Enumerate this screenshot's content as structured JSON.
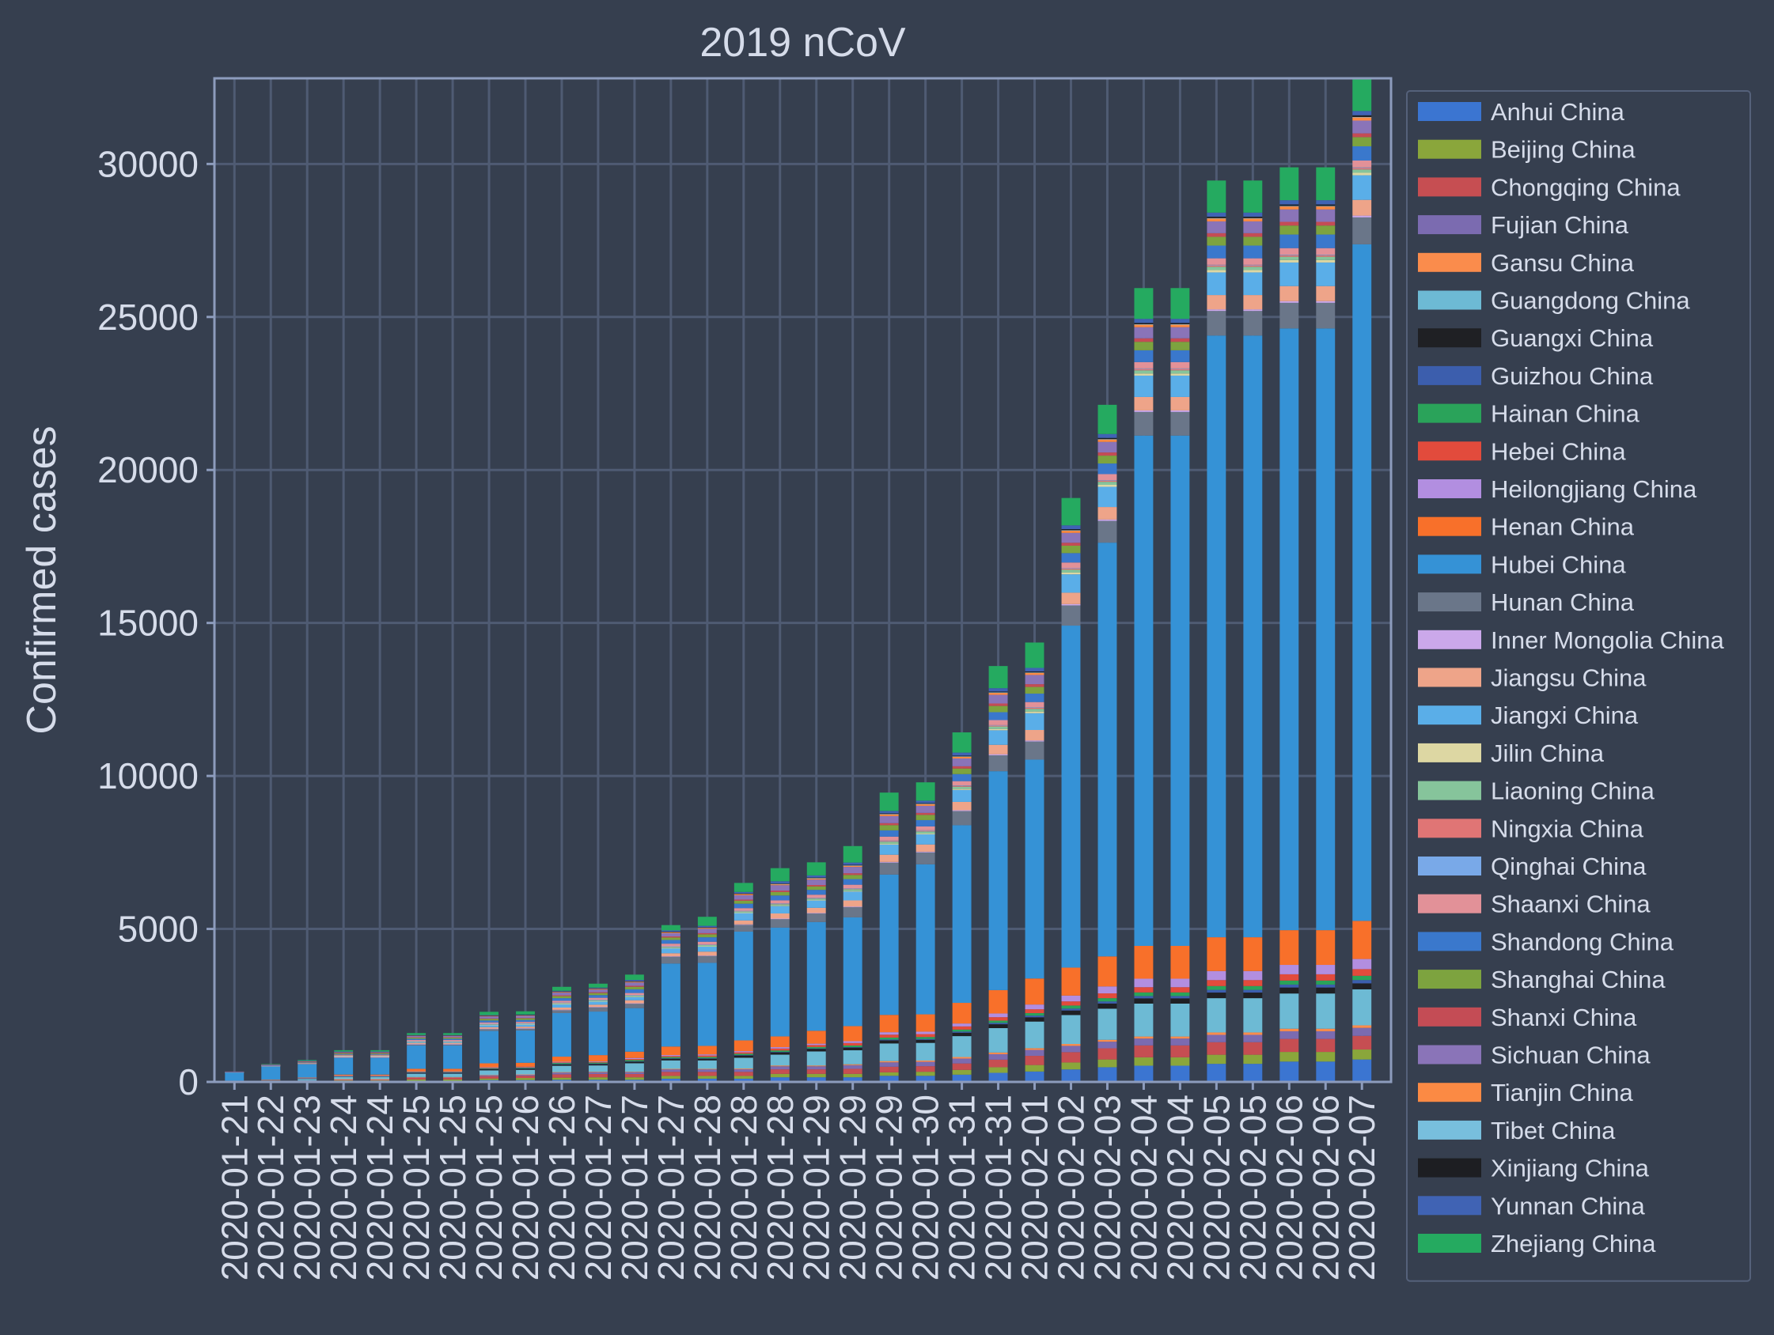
{
  "chart_data": {
    "type": "bar",
    "stacked": true,
    "title": "2019 nCoV",
    "xlabel": "",
    "ylabel": "Confirmed cases",
    "ylim": [
      0,
      32800
    ],
    "yticks": [
      0,
      5000,
      10000,
      15000,
      20000,
      25000,
      30000
    ],
    "grid": true,
    "legend_position": "right",
    "categories": [
      "2020-01-21",
      "2020-01-22",
      "2020-01-23",
      "2020-01-24",
      "2020-01-24",
      "2020-01-25",
      "2020-01-25",
      "2020-01-25",
      "2020-01-26",
      "2020-01-26",
      "2020-01-27",
      "2020-01-27",
      "2020-01-27",
      "2020-01-28",
      "2020-01-28",
      "2020-01-28",
      "2020-01-29",
      "2020-01-29",
      "2020-01-29",
      "2020-01-30",
      "2020-01-31",
      "2020-01-31",
      "2020-02-01",
      "2020-02-02",
      "2020-02-03",
      "2020-02-04",
      "2020-02-04",
      "2020-02-05",
      "2020-02-05",
      "2020-02-06",
      "2020-02-06",
      "2020-02-07"
    ],
    "series": [
      {
        "name": "Anhui China",
        "color": "#3b75d1",
        "values": [
          0,
          1,
          9,
          15,
          15,
          39,
          39,
          60,
          60,
          70,
          70,
          70,
          106,
          106,
          106,
          152,
          152,
          152,
          200,
          200,
          237,
          297,
          340,
          408,
          480,
          530,
          530,
          591,
          591,
          665,
          665,
          733
        ]
      },
      {
        "name": "Beijing China",
        "color": "#8aa63b",
        "values": [
          10,
          14,
          22,
          36,
          36,
          41,
          41,
          51,
          68,
          68,
          80,
          80,
          91,
          91,
          91,
          111,
          111,
          111,
          114,
          132,
          156,
          183,
          212,
          228,
          253,
          274,
          274,
          297,
          297,
          315,
          315,
          326
        ]
      },
      {
        "name": "Chongqing China",
        "color": "#c64e52",
        "values": [
          0,
          6,
          9,
          27,
          27,
          57,
          57,
          75,
          75,
          110,
          110,
          110,
          132,
          132,
          132,
          147,
          147,
          165,
          182,
          182,
          211,
          247,
          300,
          337,
          366,
          389,
          389,
          411,
          411,
          426,
          426,
          446
        ]
      },
      {
        "name": "Fujian China",
        "color": "#7b6bb0",
        "values": [
          0,
          1,
          5,
          10,
          10,
          18,
          18,
          35,
          35,
          59,
          59,
          59,
          80,
          80,
          84,
          101,
          101,
          120,
          144,
          144,
          159,
          179,
          194,
          205,
          215,
          224,
          224,
          239,
          239,
          250,
          250,
          261
        ]
      },
      {
        "name": "Gansu China",
        "color": "#fa8c4c",
        "values": [
          0,
          0,
          0,
          2,
          2,
          4,
          4,
          7,
          7,
          14,
          14,
          14,
          19,
          19,
          24,
          26,
          26,
          29,
          40,
          40,
          51,
          55,
          57,
          62,
          62,
          67,
          67,
          79,
          79,
          83,
          83,
          83
        ]
      },
      {
        "name": "Guangdong China",
        "color": "#6dbad4",
        "values": [
          26,
          32,
          53,
          78,
          78,
          111,
          111,
          151,
          151,
          207,
          207,
          277,
          277,
          277,
          354,
          354,
          459,
          459,
          578,
          578,
          683,
          797,
          870,
          944,
          1018,
          1075,
          1075,
          1120,
          1120,
          1151,
          1151,
          1177
        ]
      },
      {
        "name": "Guangxi China",
        "color": "#1f2024",
        "values": [
          0,
          5,
          23,
          23,
          23,
          36,
          36,
          46,
          46,
          51,
          51,
          58,
          58,
          58,
          78,
          78,
          87,
          87,
          100,
          100,
          111,
          127,
          139,
          150,
          168,
          172,
          172,
          183,
          183,
          195,
          195,
          195
        ]
      },
      {
        "name": "Guizhou China",
        "color": "#3c5ead",
        "values": [
          0,
          1,
          3,
          3,
          3,
          4,
          4,
          5,
          5,
          7,
          7,
          9,
          9,
          9,
          9,
          12,
          12,
          15,
          29,
          29,
          38,
          46,
          56,
          64,
          69,
          77,
          77,
          89,
          89,
          96,
          96,
          109
        ]
      },
      {
        "name": "Hainan China",
        "color": "#2aa35a",
        "values": [
          0,
          4,
          5,
          8,
          8,
          19,
          19,
          22,
          22,
          33,
          33,
          40,
          40,
          43,
          43,
          46,
          46,
          52,
          62,
          62,
          64,
          72,
          80,
          99,
          106,
          117,
          117,
          124,
          124,
          131,
          131,
          138
        ]
      },
      {
        "name": "Hebei China",
        "color": "#e24b3c",
        "values": [
          0,
          1,
          1,
          2,
          2,
          8,
          8,
          13,
          13,
          18,
          18,
          33,
          33,
          48,
          48,
          65,
          65,
          82,
          96,
          96,
          104,
          113,
          126,
          135,
          157,
          171,
          171,
          195,
          195,
          206,
          206,
          218
        ]
      },
      {
        "name": "Heilongjiang China",
        "color": "#b28ee0",
        "values": [
          0,
          0,
          2,
          4,
          4,
          9,
          9,
          15,
          15,
          21,
          21,
          33,
          33,
          37,
          37,
          44,
          44,
          59,
          80,
          80,
          95,
          121,
          155,
          190,
          227,
          277,
          277,
          295,
          295,
          307,
          307,
          331
        ]
      },
      {
        "name": "Henan China",
        "color": "#f8702a",
        "values": [
          5,
          5,
          9,
          32,
          32,
          83,
          83,
          128,
          128,
          168,
          206,
          206,
          278,
          278,
          352,
          352,
          422,
          493,
          566,
          566,
          675,
          764,
          851,
          914,
          981,
          1073,
          1073,
          1105,
          1105,
          1135,
          1135,
          1246
        ]
      },
      {
        "name": "Hubei China",
        "color": "#3592d6",
        "values": [
          270,
          444,
          444,
          549,
          549,
          761,
          761,
          1058,
          1058,
          1423,
          1423,
          1423,
          2714,
          2714,
          3554,
          3554,
          3554,
          3554,
          4586,
          4903,
          5806,
          7153,
          7153,
          11177,
          13522,
          16678,
          16678,
          19665,
          19665,
          19665,
          19665,
          22112
        ]
      },
      {
        "name": "Hunan China",
        "color": "#6a7689",
        "values": [
          1,
          4,
          9,
          24,
          24,
          43,
          43,
          69,
          69,
          100,
          143,
          143,
          221,
          221,
          221,
          277,
          277,
          332,
          389,
          389,
          463,
          521,
          593,
          661,
          711,
          772,
          772,
          803,
          803,
          838,
          838,
          879
        ]
      },
      {
        "name": "Inner Mongolia China",
        "color": "#cba8ea",
        "values": [
          0,
          0,
          0,
          1,
          1,
          7,
          7,
          7,
          7,
          11,
          11,
          15,
          15,
          16,
          16,
          19,
          19,
          20,
          23,
          23,
          27,
          34,
          35,
          42,
          46,
          50,
          50,
          52,
          52,
          54,
          54,
          58
        ]
      },
      {
        "name": "Jiangsu China",
        "color": "#eea489",
        "values": [
          1,
          5,
          9,
          18,
          18,
          33,
          33,
          47,
          47,
          70,
          70,
          99,
          99,
          129,
          129,
          168,
          168,
          202,
          236,
          236,
          271,
          308,
          341,
          373,
          408,
          439,
          439,
          468,
          468,
          492,
          492,
          515
        ]
      },
      {
        "name": "Jiangxi China",
        "color": "#5aaee8",
        "values": [
          2,
          7,
          18,
          18,
          18,
          36,
          36,
          72,
          72,
          109,
          109,
          109,
          162,
          162,
          240,
          240,
          240,
          286,
          333,
          333,
          391,
          476,
          548,
          600,
          661,
          698,
          698,
          740,
          740,
          771,
          771,
          804
        ]
      },
      {
        "name": "Jilin China",
        "color": "#ddd7a3",
        "values": [
          0,
          1,
          3,
          4,
          4,
          4,
          4,
          6,
          6,
          8,
          8,
          9,
          9,
          14,
          14,
          14,
          14,
          17,
          23,
          23,
          31,
          42,
          54,
          59,
          65,
          69,
          69,
          78,
          78,
          80,
          80,
          81
        ]
      },
      {
        "name": "Liaoning China",
        "color": "#86c49b",
        "values": [
          2,
          3,
          4,
          17,
          17,
          21,
          21,
          27,
          27,
          34,
          34,
          39,
          39,
          41,
          41,
          48,
          48,
          64,
          70,
          70,
          74,
          81,
          89,
          94,
          99,
          105,
          105,
          107,
          107,
          108,
          108,
          108
        ]
      },
      {
        "name": "Ningxia China",
        "color": "#e07575",
        "values": [
          0,
          1,
          1,
          2,
          2,
          3,
          3,
          4,
          4,
          7,
          7,
          11,
          11,
          12,
          12,
          17,
          17,
          21,
          26,
          26,
          28,
          31,
          34,
          34,
          40,
          43,
          43,
          45,
          45,
          45,
          45,
          49
        ]
      },
      {
        "name": "Qinghai China",
        "color": "#79a9e8",
        "values": [
          0,
          0,
          0,
          0,
          0,
          1,
          1,
          1,
          1,
          6,
          6,
          6,
          6,
          8,
          8,
          9,
          9,
          9,
          11,
          11,
          13,
          13,
          15,
          15,
          15,
          17,
          17,
          18,
          18,
          18,
          18,
          18
        ]
      },
      {
        "name": "Shaanxi China",
        "color": "#e29198",
        "values": [
          0,
          1,
          1,
          15,
          15,
          35,
          35,
          46,
          46,
          56,
          63,
          63,
          87,
          87,
          87,
          101,
          101,
          116,
          128,
          128,
          142,
          165,
          173,
          184,
          195,
          208,
          208,
          213,
          213,
          219,
          219,
          225
        ]
      },
      {
        "name": "Shandong China",
        "color": "#3a78cc",
        "values": [
          2,
          6,
          9,
          21,
          21,
          39,
          39,
          63,
          63,
          87,
          87,
          121,
          121,
          145,
          145,
          158,
          158,
          184,
          206,
          206,
          230,
          259,
          275,
          307,
          347,
          386,
          386,
          416,
          416,
          444,
          444,
          466
        ]
      },
      {
        "name": "Shanghai China",
        "color": "#7da33f",
        "values": [
          9,
          16,
          20,
          33,
          33,
          40,
          40,
          53,
          53,
          66,
          66,
          80,
          80,
          96,
          96,
          112,
          112,
          135,
          169,
          169,
          182,
          203,
          219,
          243,
          257,
          277,
          277,
          286,
          286,
          293,
          293,
          299
        ]
      },
      {
        "name": "Shanxi China",
        "color": "#c44c55",
        "values": [
          1,
          1,
          1,
          6,
          6,
          9,
          9,
          13,
          13,
          27,
          27,
          35,
          35,
          39,
          39,
          47,
          47,
          56,
          66,
          66,
          74,
          81,
          90,
          96,
          104,
          115,
          115,
          119,
          119,
          122,
          122,
          124
        ]
      },
      {
        "name": "Sichuan China",
        "color": "#8a74b8",
        "values": [
          5,
          8,
          15,
          28,
          28,
          44,
          44,
          69,
          69,
          90,
          90,
          108,
          108,
          142,
          142,
          177,
          177,
          207,
          231,
          231,
          254,
          282,
          301,
          321,
          344,
          363,
          363,
          386,
          386,
          405,
          405,
          417
        ]
      },
      {
        "name": "Tianjin China",
        "color": "#fb8a44",
        "values": [
          4,
          4,
          8,
          10,
          10,
          14,
          14,
          23,
          23,
          24,
          27,
          27,
          32,
          32,
          41,
          41,
          48,
          48,
          67,
          67,
          69,
          79,
          81,
          88,
          91,
          96,
          96,
          106,
          106,
          112,
          112,
          117
        ]
      },
      {
        "name": "Tibet China",
        "color": "#78bfdd",
        "values": [
          0,
          0,
          0,
          0,
          0,
          0,
          0,
          0,
          0,
          0,
          0,
          0,
          0,
          0,
          0,
          1,
          1,
          1,
          1,
          1,
          1,
          1,
          1,
          1,
          1,
          1,
          1,
          1,
          1,
          1,
          1,
          1
        ]
      },
      {
        "name": "Xinjiang China",
        "color": "#1d1e22",
        "values": [
          0,
          0,
          2,
          3,
          3,
          4,
          4,
          5,
          5,
          10,
          10,
          13,
          13,
          14,
          14,
          17,
          17,
          18,
          21,
          21,
          24,
          29,
          32,
          36,
          39,
          42,
          42,
          45,
          45,
          49,
          49,
          55
        ]
      },
      {
        "name": "Yunnan China",
        "color": "#4063b4",
        "values": [
          1,
          1,
          2,
          5,
          5,
          11,
          11,
          16,
          16,
          26,
          26,
          44,
          44,
          51,
          51,
          70,
          70,
          76,
          80,
          80,
          99,
          109,
          117,
          122,
          128,
          133,
          133,
          135,
          135,
          140,
          140,
          141
        ]
      },
      {
        "name": "Zhejiang China",
        "color": "#25aa60",
        "values": [
          0,
          10,
          27,
          43,
          43,
          62,
          62,
          104,
          104,
          128,
          128,
          173,
          173,
          296,
          296,
          428,
          428,
          538,
          599,
          599,
          661,
          724,
          829,
          895,
          954,
          1006,
          1006,
          1048,
          1048,
          1075,
          1075,
          1092
        ]
      }
    ]
  }
}
